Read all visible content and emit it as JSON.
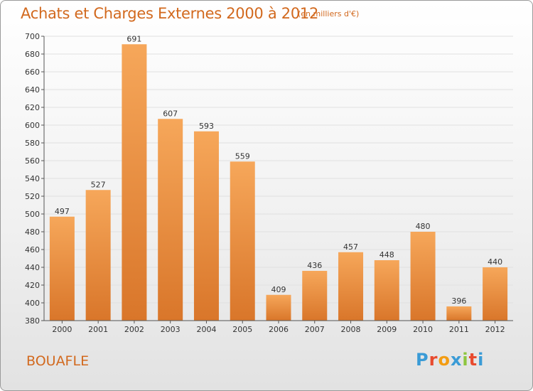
{
  "title": "Achats et Charges Externes 2000 à 2012",
  "unit": "(en milliers d'€)",
  "commune": "BOUAFLE",
  "logo": {
    "letters": [
      "P",
      "r",
      "o",
      "x",
      "i",
      "t",
      "i"
    ],
    "colors": [
      "#3a9bd6",
      "#e84a2e",
      "#f39c12",
      "#3a9bd6",
      "#8dc63f",
      "#e84a2e",
      "#3a9bd6"
    ]
  },
  "colors": {
    "accent": "#d2691e",
    "bar_top": "#f6a75a",
    "bar_bottom": "#d9762a",
    "grid": "#e0e0e0"
  },
  "chart_data": {
    "type": "bar",
    "categories": [
      "2000",
      "2001",
      "2002",
      "2003",
      "2004",
      "2005",
      "2006",
      "2007",
      "2008",
      "2009",
      "2010",
      "2011",
      "2012"
    ],
    "values": [
      497,
      527,
      691,
      607,
      593,
      559,
      409,
      436,
      457,
      448,
      480,
      396,
      440
    ],
    "ylim": [
      380,
      700
    ],
    "yticks": [
      380,
      400,
      420,
      440,
      460,
      480,
      500,
      520,
      540,
      560,
      580,
      600,
      620,
      640,
      660,
      680,
      700
    ],
    "grid": true,
    "data_labels": true
  }
}
